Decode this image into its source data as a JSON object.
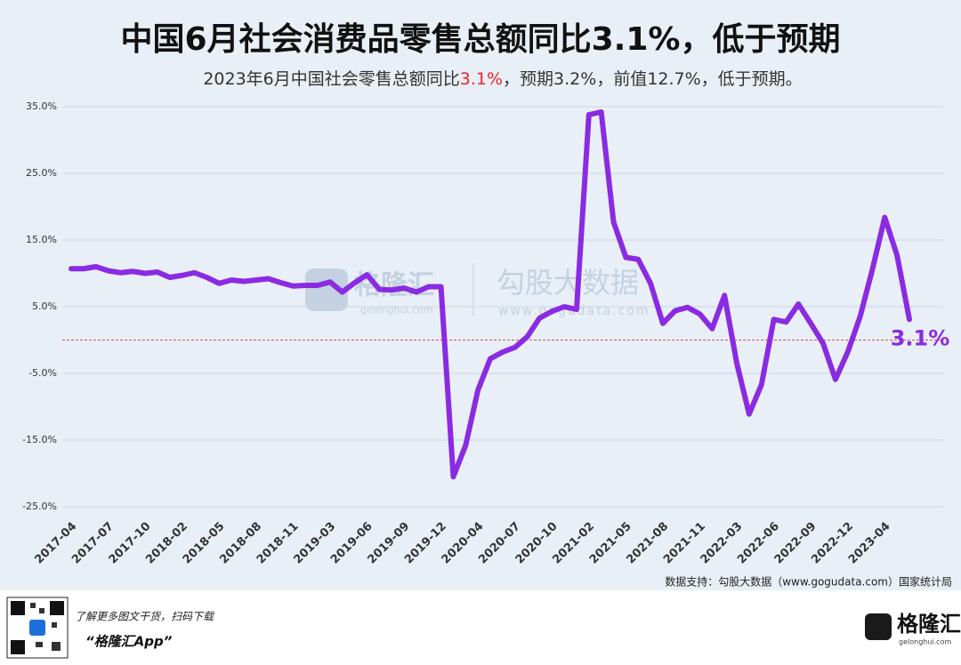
{
  "chart_data": {
    "type": "line",
    "title": "中国6月社会消费品零售总额同比3.1%，低于预期",
    "subtitle_parts": [
      "2023年6月中国社会零售总额同比",
      "3.1%",
      "，预期3.2%，前值12.7%，低于预期。"
    ],
    "subtitle_colors": [
      "#333333",
      "#e8262b",
      "#333333"
    ],
    "x": [
      "2017-04",
      null,
      null,
      "2017-07",
      null,
      null,
      "2017-10",
      null,
      null,
      "2018-02",
      null,
      null,
      "2018-05",
      null,
      null,
      "2018-08",
      null,
      null,
      "2018-11",
      null,
      null,
      "2019-03",
      null,
      null,
      "2019-06",
      null,
      null,
      "2019-09",
      null,
      null,
      "2019-12",
      null,
      null,
      "2020-04",
      null,
      null,
      "2020-07",
      null,
      null,
      "2020-10",
      null,
      null,
      "2021-02",
      null,
      null,
      "2021-05",
      null,
      null,
      "2021-08",
      null,
      null,
      "2021-11",
      null,
      null,
      "2022-03",
      null,
      null,
      "2022-06",
      null,
      null,
      "2022-09",
      null,
      null,
      "2022-12",
      null,
      null,
      "2023-04",
      null,
      null
    ],
    "series": [
      {
        "color": "#8a2be2",
        "values": [
          10.7,
          10.7,
          11.0,
          10.4,
          10.1,
          10.3,
          10.0,
          10.2,
          9.4,
          9.7,
          10.1,
          9.4,
          8.5,
          9.0,
          8.8,
          9.0,
          9.2,
          8.6,
          8.1,
          8.2,
          8.2,
          8.7,
          7.2,
          8.6,
          9.8,
          7.6,
          7.5,
          7.8,
          7.2,
          8.0,
          8.0,
          -20.5,
          -15.8,
          -7.5,
          -2.8,
          -1.8,
          -1.1,
          0.5,
          3.3,
          4.3,
          5.0,
          4.6,
          33.8,
          34.2,
          17.7,
          12.4,
          12.1,
          8.5,
          2.5,
          4.4,
          4.9,
          3.9,
          1.7,
          6.7,
          -3.5,
          -11.1,
          -6.7,
          3.1,
          2.7,
          5.4,
          2.5,
          -0.5,
          -5.9,
          -1.8,
          3.5,
          10.6,
          18.4,
          12.7,
          3.1
        ],
        "value_labels": [
          null,
          null,
          null,
          null,
          null,
          null,
          null,
          null,
          null,
          null,
          null,
          null,
          null,
          null,
          null,
          null,
          null,
          null,
          null,
          null,
          null,
          null,
          null,
          null,
          null,
          null,
          null,
          null,
          null,
          null,
          null,
          null,
          null,
          null,
          null,
          null,
          null,
          null,
          null,
          null,
          null,
          null,
          null,
          null,
          null,
          null,
          null,
          null,
          null,
          null,
          null,
          null,
          null,
          null,
          null,
          null,
          null,
          null,
          null,
          null,
          null,
          null,
          null,
          null,
          null,
          null,
          null,
          null,
          "3.1%"
        ]
      }
    ],
    "ylim": [
      -25,
      35
    ],
    "yticks": [
      {
        "value": 35,
        "label": "35.0%"
      },
      {
        "value": 25,
        "label": "25.0%"
      },
      {
        "value": 15,
        "label": "15.0%"
      },
      {
        "value": 5,
        "label": "5.0%"
      },
      {
        "value": -5,
        "label": "-5.0%"
      },
      {
        "value": -15,
        "label": "-15.0%"
      },
      {
        "value": -25,
        "label": "-25.0%"
      }
    ],
    "grid": true,
    "reference_line": 0,
    "reference_color": "#d9534f",
    "source": "数据支持：勾股大数据（www.gogudata.com）国家统计局"
  },
  "watermark": {
    "brand": "格隆汇",
    "brand_url": "gelonghui.com",
    "data_brand": "勾股大数据",
    "data_url": "www.gogudata.com"
  },
  "footer": {
    "tagline": "了解更多图文干货，扫码下载",
    "app": "“格隆汇App”",
    "logo": "格隆汇",
    "logo_url": "gelonghui.com"
  }
}
